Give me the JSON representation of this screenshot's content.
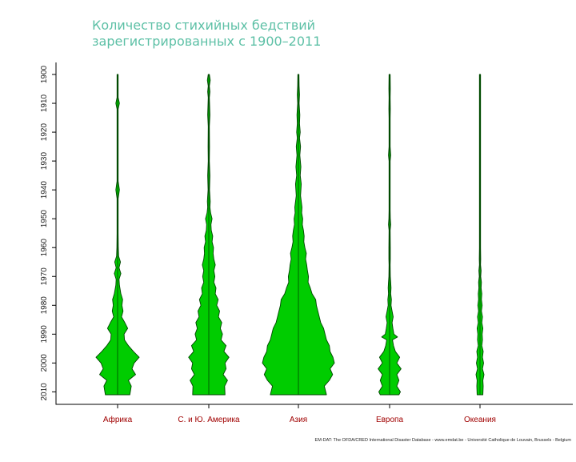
{
  "title_line1": "Количество стихийных бедствий",
  "title_line2": "зарегистрированных с 1900–2011",
  "source": "EM-DAT: The OFDA/CRED International Disaster Database - www.emdat.be - Université Catholique de Louvain, Brussels - Belgium",
  "colors": {
    "fill": "#00cc00",
    "stroke": "#004400",
    "axis": "#000000",
    "category_text": "#a00000",
    "title": "#5dc0a6"
  },
  "chart_data": {
    "type": "violin",
    "title": "Количество стихийных бедствий зарегистрированных с 1900–2011",
    "y_axis": {
      "min": 1900,
      "max": 2011,
      "ticks": [
        1900,
        1910,
        1920,
        1930,
        1940,
        1950,
        1960,
        1970,
        1980,
        1990,
        2000,
        2010
      ],
      "reversed": true
    },
    "unit": "relative width (annual disaster count, Asia peak = 100)",
    "categories": [
      "Африка",
      "С. и Ю. Америка",
      "Азия",
      "Европа",
      "Океания"
    ],
    "series": [
      {
        "category": "Африка",
        "profile": [
          [
            1900,
            1
          ],
          [
            1905,
            1
          ],
          [
            1908,
            1
          ],
          [
            1910,
            5
          ],
          [
            1912,
            1
          ],
          [
            1920,
            1
          ],
          [
            1930,
            1
          ],
          [
            1937,
            1
          ],
          [
            1940,
            5
          ],
          [
            1943,
            1
          ],
          [
            1950,
            1
          ],
          [
            1955,
            1
          ],
          [
            1960,
            2
          ],
          [
            1963,
            3
          ],
          [
            1965,
            8
          ],
          [
            1967,
            4
          ],
          [
            1969,
            9
          ],
          [
            1971,
            4
          ],
          [
            1973,
            5
          ],
          [
            1976,
            9
          ],
          [
            1978,
            14
          ],
          [
            1980,
            12
          ],
          [
            1982,
            15
          ],
          [
            1984,
            11
          ],
          [
            1986,
            20
          ],
          [
            1988,
            28
          ],
          [
            1990,
            18
          ],
          [
            1992,
            19
          ],
          [
            1994,
            30
          ],
          [
            1996,
            44
          ],
          [
            1998,
            60
          ],
          [
            2000,
            46
          ],
          [
            2002,
            40
          ],
          [
            2004,
            50
          ],
          [
            2006,
            30
          ],
          [
            2008,
            38
          ],
          [
            2011,
            34
          ]
        ]
      },
      {
        "category": "С. и Ю. Америка",
        "profile": [
          [
            1900,
            1
          ],
          [
            1902,
            4
          ],
          [
            1904,
            1
          ],
          [
            1906,
            3
          ],
          [
            1908,
            1
          ],
          [
            1914,
            3
          ],
          [
            1918,
            1
          ],
          [
            1925,
            2
          ],
          [
            1930,
            1
          ],
          [
            1935,
            3
          ],
          [
            1940,
            2
          ],
          [
            1944,
            4
          ],
          [
            1946,
            3
          ],
          [
            1948,
            5
          ],
          [
            1950,
            9
          ],
          [
            1952,
            6
          ],
          [
            1954,
            7
          ],
          [
            1956,
            11
          ],
          [
            1958,
            9
          ],
          [
            1960,
            13
          ],
          [
            1962,
            12
          ],
          [
            1964,
            14
          ],
          [
            1966,
            18
          ],
          [
            1968,
            14
          ],
          [
            1970,
            17
          ],
          [
            1972,
            14
          ],
          [
            1974,
            20
          ],
          [
            1976,
            18
          ],
          [
            1978,
            26
          ],
          [
            1980,
            22
          ],
          [
            1982,
            30
          ],
          [
            1984,
            27
          ],
          [
            1986,
            36
          ],
          [
            1988,
            32
          ],
          [
            1990,
            38
          ],
          [
            1992,
            34
          ],
          [
            1994,
            48
          ],
          [
            1996,
            42
          ],
          [
            1998,
            56
          ],
          [
            2000,
            45
          ],
          [
            2002,
            48
          ],
          [
            2004,
            40
          ],
          [
            2006,
            52
          ],
          [
            2008,
            44
          ],
          [
            2011,
            45
          ]
        ]
      },
      {
        "category": "Азия",
        "profile": [
          [
            1900,
            1
          ],
          [
            1904,
            2
          ],
          [
            1907,
            3
          ],
          [
            1910,
            2
          ],
          [
            1914,
            4
          ],
          [
            1917,
            3
          ],
          [
            1920,
            5
          ],
          [
            1922,
            3
          ],
          [
            1925,
            6
          ],
          [
            1928,
            4
          ],
          [
            1932,
            7
          ],
          [
            1935,
            5
          ],
          [
            1938,
            8
          ],
          [
            1942,
            6
          ],
          [
            1946,
            10
          ],
          [
            1948,
            9
          ],
          [
            1950,
            12
          ],
          [
            1952,
            11
          ],
          [
            1954,
            14
          ],
          [
            1956,
            16
          ],
          [
            1958,
            15
          ],
          [
            1960,
            18
          ],
          [
            1962,
            22
          ],
          [
            1964,
            20
          ],
          [
            1966,
            23
          ],
          [
            1968,
            25
          ],
          [
            1970,
            28
          ],
          [
            1972,
            27
          ],
          [
            1974,
            33
          ],
          [
            1976,
            38
          ],
          [
            1978,
            48
          ],
          [
            1980,
            50
          ],
          [
            1982,
            54
          ],
          [
            1984,
            58
          ],
          [
            1986,
            62
          ],
          [
            1988,
            70
          ],
          [
            1990,
            74
          ],
          [
            1992,
            78
          ],
          [
            1994,
            86
          ],
          [
            1996,
            88
          ],
          [
            1998,
            96
          ],
          [
            2000,
            100
          ],
          [
            2002,
            88
          ],
          [
            2004,
            95
          ],
          [
            2006,
            86
          ],
          [
            2008,
            72
          ],
          [
            2011,
            78
          ]
        ]
      },
      {
        "category": "Европа",
        "profile": [
          [
            1900,
            1
          ],
          [
            1905,
            2
          ],
          [
            1908,
            1
          ],
          [
            1912,
            2
          ],
          [
            1915,
            1
          ],
          [
            1920,
            1
          ],
          [
            1925,
            1
          ],
          [
            1928,
            3
          ],
          [
            1930,
            1
          ],
          [
            1940,
            1
          ],
          [
            1947,
            1
          ],
          [
            1950,
            2
          ],
          [
            1952,
            3
          ],
          [
            1954,
            1
          ],
          [
            1960,
            2
          ],
          [
            1964,
            2
          ],
          [
            1966,
            1
          ],
          [
            1970,
            2
          ],
          [
            1972,
            3
          ],
          [
            1974,
            4
          ],
          [
            1976,
            3
          ],
          [
            1978,
            5
          ],
          [
            1980,
            4
          ],
          [
            1982,
            7
          ],
          [
            1984,
            10
          ],
          [
            1986,
            7
          ],
          [
            1988,
            9
          ],
          [
            1990,
            12
          ],
          [
            1991,
            22
          ],
          [
            1992,
            8
          ],
          [
            1994,
            11
          ],
          [
            1996,
            16
          ],
          [
            1998,
            28
          ],
          [
            2000,
            20
          ],
          [
            2002,
            32
          ],
          [
            2004,
            20
          ],
          [
            2006,
            26
          ],
          [
            2008,
            20
          ],
          [
            2010,
            30
          ],
          [
            2011,
            26
          ]
        ]
      },
      {
        "category": "Океания",
        "profile": [
          [
            1900,
            1
          ],
          [
            1910,
            1
          ],
          [
            1920,
            1
          ],
          [
            1930,
            1
          ],
          [
            1940,
            1
          ],
          [
            1950,
            1
          ],
          [
            1955,
            1
          ],
          [
            1960,
            1
          ],
          [
            1964,
            2
          ],
          [
            1966,
            1
          ],
          [
            1968,
            3
          ],
          [
            1970,
            2
          ],
          [
            1972,
            4
          ],
          [
            1974,
            3
          ],
          [
            1976,
            5
          ],
          [
            1978,
            4
          ],
          [
            1980,
            6
          ],
          [
            1982,
            4
          ],
          [
            1984,
            7
          ],
          [
            1986,
            5
          ],
          [
            1988,
            8
          ],
          [
            1990,
            6
          ],
          [
            1992,
            7
          ],
          [
            1994,
            5
          ],
          [
            1996,
            9
          ],
          [
            1998,
            7
          ],
          [
            2000,
            10
          ],
          [
            2002,
            7
          ],
          [
            2004,
            11
          ],
          [
            2006,
            8
          ],
          [
            2008,
            9
          ],
          [
            2011,
            8
          ]
        ]
      }
    ],
    "grid": false,
    "legend": "none"
  }
}
